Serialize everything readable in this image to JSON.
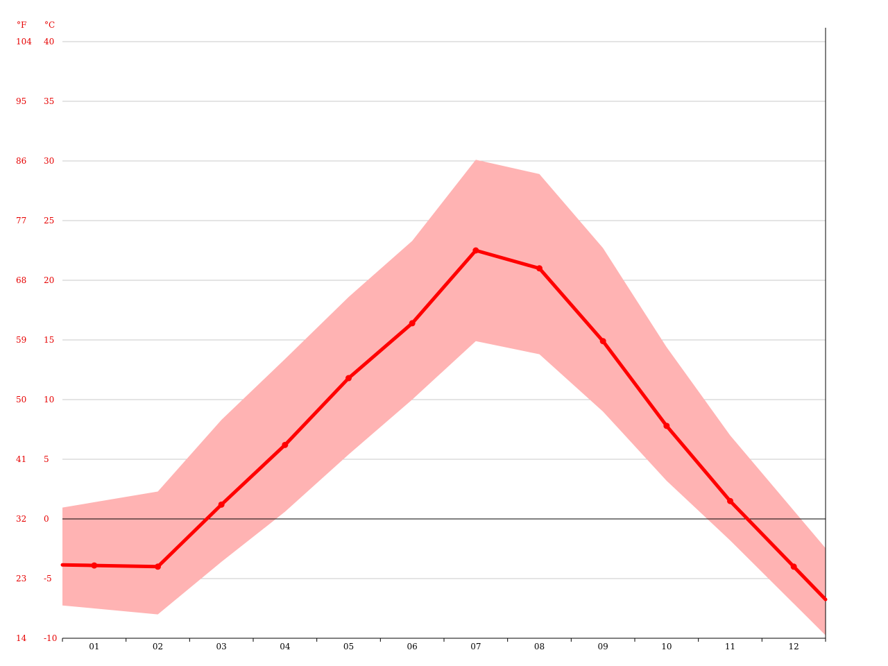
{
  "chart_data": {
    "type": "line",
    "y_unit_left": "°F",
    "y_unit_right": "°C",
    "categories": [
      "01",
      "02",
      "03",
      "04",
      "05",
      "06",
      "07",
      "08",
      "09",
      "10",
      "11",
      "12"
    ],
    "ylim": [
      -10,
      40
    ],
    "y_ticks_c": [
      -10,
      -5,
      0,
      5,
      10,
      15,
      20,
      25,
      30,
      35,
      40
    ],
    "y_ticks_f": [
      14,
      23,
      32,
      41,
      50,
      59,
      68,
      77,
      86,
      95,
      104
    ],
    "grid": true,
    "series": [
      {
        "role": "mean",
        "values": [
          -3.9,
          -4.0,
          1.2,
          6.2,
          11.8,
          16.4,
          22.5,
          21.0,
          14.9,
          7.8,
          1.5,
          -4.0
        ]
      },
      {
        "role": "max",
        "values": [
          1.4,
          2.3,
          8.3,
          13.4,
          18.6,
          23.3,
          30.1,
          28.9,
          22.7,
          14.4,
          7.0,
          0.7
        ]
      },
      {
        "role": "min",
        "values": [
          -7.5,
          -8.0,
          -3.6,
          0.6,
          5.4,
          10.0,
          14.9,
          13.8,
          9.0,
          3.2,
          -1.8,
          -7.1
        ]
      }
    ],
    "colors": {
      "mean": "#ff0000",
      "band": "#ffb3b3",
      "axis_labels": "#e60000",
      "grid": "#c8c8c8"
    }
  }
}
